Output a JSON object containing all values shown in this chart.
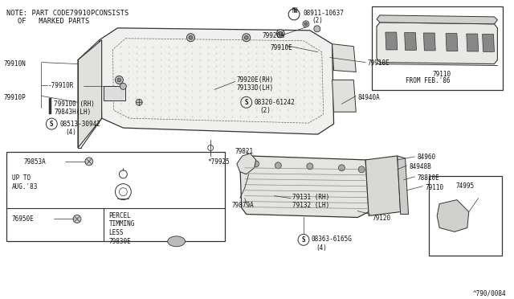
{
  "bg": "#ffffff",
  "line": "#333333",
  "text": "#111111",
  "gray_fill": "#d8d8d8",
  "light_fill": "#eeeeee",
  "note1": "NOTE: PART CODE79910PCONSISTS",
  "note2": "     OF   MARKED PARTS",
  "diagram_code": "^790/0084",
  "fs": 6.5,
  "fs_small": 5.5
}
